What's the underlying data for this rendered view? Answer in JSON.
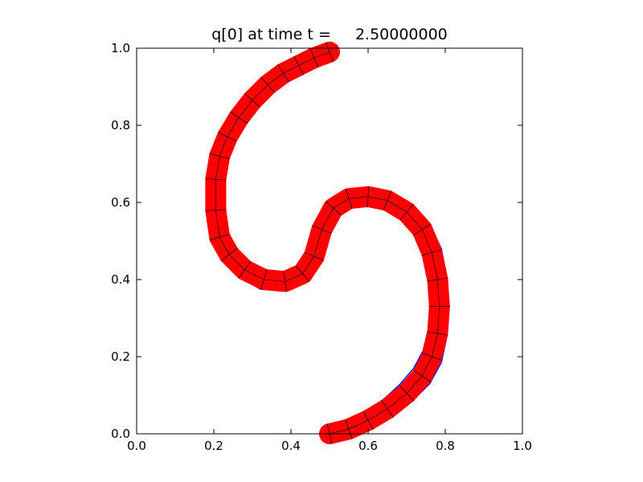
{
  "chart_data": {
    "type": "line",
    "title": "q[0] at time t =     2.50000000",
    "xlabel": "",
    "ylabel": "",
    "xlim": [
      0.0,
      1.0
    ],
    "ylim": [
      0.0,
      1.0
    ],
    "x_ticks": [
      "0.0",
      "0.2",
      "0.4",
      "0.6",
      "0.8",
      "1.0"
    ],
    "y_ticks": [
      "0.0",
      "0.2",
      "0.4",
      "0.6",
      "0.8",
      "1.0"
    ],
    "grid": false,
    "legend": "none",
    "series": [
      {
        "role": "refined-patches",
        "color": "#ff0000",
        "x": [
          0.5,
          0.46,
          0.42,
          0.38,
          0.34,
          0.3,
          0.265,
          0.235,
          0.215,
          0.205,
          0.205,
          0.215,
          0.24,
          0.28,
          0.33,
          0.385,
          0.43,
          0.46,
          0.48,
          0.51,
          0.55,
          0.6,
          0.65,
          0.7,
          0.74,
          0.765,
          0.78,
          0.785,
          0.78,
          0.765,
          0.74,
          0.7,
          0.65,
          0.6,
          0.55,
          0.5
        ],
        "y": [
          0.99,
          0.975,
          0.955,
          0.935,
          0.905,
          0.865,
          0.82,
          0.77,
          0.72,
          0.66,
          0.58,
          0.51,
          0.465,
          0.425,
          0.4,
          0.395,
          0.415,
          0.46,
          0.53,
          0.585,
          0.61,
          0.615,
          0.605,
          0.575,
          0.53,
          0.47,
          0.4,
          0.33,
          0.26,
          0.2,
          0.15,
          0.105,
          0.065,
          0.035,
          0.012,
          0.0
        ]
      },
      {
        "role": "patch-edges",
        "color": "#000000",
        "x": [
          0.5,
          0.46,
          0.42,
          0.38,
          0.34,
          0.3,
          0.265,
          0.235,
          0.215,
          0.205,
          0.205,
          0.215,
          0.24,
          0.28,
          0.33,
          0.385,
          0.43,
          0.46,
          0.48,
          0.51,
          0.55,
          0.6,
          0.65,
          0.7,
          0.74,
          0.765,
          0.78,
          0.785,
          0.78,
          0.765,
          0.74,
          0.7,
          0.65,
          0.6,
          0.55,
          0.5
        ],
        "y": [
          0.99,
          0.975,
          0.955,
          0.935,
          0.905,
          0.865,
          0.82,
          0.77,
          0.72,
          0.66,
          0.58,
          0.51,
          0.465,
          0.425,
          0.4,
          0.395,
          0.415,
          0.46,
          0.53,
          0.585,
          0.61,
          0.615,
          0.605,
          0.575,
          0.53,
          0.47,
          0.4,
          0.33,
          0.26,
          0.2,
          0.15,
          0.105,
          0.065,
          0.035,
          0.012,
          0.0
        ]
      },
      {
        "role": "contour-outer",
        "color": "#0000ff",
        "x": [
          0.51,
          0.47,
          0.43,
          0.385,
          0.345,
          0.3,
          0.262,
          0.23,
          0.205,
          0.185,
          0.185,
          0.195,
          0.225,
          0.27,
          0.32,
          0.38,
          0.44,
          0.47,
          0.495,
          0.52,
          0.56,
          0.61,
          0.66,
          0.715,
          0.76,
          0.79,
          0.805,
          0.81,
          0.805,
          0.79,
          0.76,
          0.715,
          0.665,
          0.61,
          0.56,
          0.505
        ],
        "y": [
          1.0,
          0.99,
          0.975,
          0.96,
          0.935,
          0.895,
          0.85,
          0.795,
          0.74,
          0.675,
          0.59,
          0.505,
          0.45,
          0.405,
          0.375,
          0.37,
          0.395,
          0.445,
          0.525,
          0.59,
          0.63,
          0.638,
          0.628,
          0.595,
          0.545,
          0.48,
          0.405,
          0.33,
          0.255,
          0.185,
          0.13,
          0.085,
          0.05,
          0.025,
          0.008,
          0.0
        ]
      },
      {
        "role": "contour-inner",
        "color": "#0000ff",
        "x": [
          0.49,
          0.45,
          0.41,
          0.372,
          0.335,
          0.302,
          0.27,
          0.243,
          0.227,
          0.222,
          0.223,
          0.235,
          0.258,
          0.292,
          0.338,
          0.388,
          0.42,
          0.448,
          0.468,
          0.5,
          0.54,
          0.59,
          0.64,
          0.685,
          0.72,
          0.742,
          0.755,
          0.76,
          0.755,
          0.742,
          0.718,
          0.682,
          0.635,
          0.59,
          0.54,
          0.495
        ],
        "y": [
          0.975,
          0.958,
          0.938,
          0.912,
          0.88,
          0.838,
          0.792,
          0.745,
          0.7,
          0.645,
          0.575,
          0.515,
          0.48,
          0.447,
          0.425,
          0.42,
          0.435,
          0.475,
          0.54,
          0.575,
          0.595,
          0.597,
          0.585,
          0.558,
          0.515,
          0.46,
          0.398,
          0.332,
          0.268,
          0.215,
          0.17,
          0.128,
          0.085,
          0.05,
          0.022,
          0.01
        ]
      },
      {
        "role": "contour-mid",
        "color": "#0000ff",
        "x": [
          0.505,
          0.463,
          0.423,
          0.38,
          0.34,
          0.299,
          0.262,
          0.231,
          0.21,
          0.198,
          0.196,
          0.206,
          0.232,
          0.274,
          0.326,
          0.384,
          0.434,
          0.464,
          0.486,
          0.515,
          0.555,
          0.605,
          0.655,
          0.707,
          0.75,
          0.777,
          0.792,
          0.797,
          0.792,
          0.777,
          0.75,
          0.708,
          0.658,
          0.605,
          0.555,
          0.5
        ],
        "y": [
          0.996,
          0.982,
          0.964,
          0.946,
          0.918,
          0.878,
          0.833,
          0.781,
          0.729,
          0.667,
          0.584,
          0.507,
          0.457,
          0.414,
          0.387,
          0.382,
          0.404,
          0.452,
          0.527,
          0.588,
          0.62,
          0.627,
          0.617,
          0.585,
          0.538,
          0.475,
          0.402,
          0.33,
          0.258,
          0.192,
          0.14,
          0.095,
          0.058,
          0.03,
          0.01,
          0.004
        ]
      }
    ]
  }
}
